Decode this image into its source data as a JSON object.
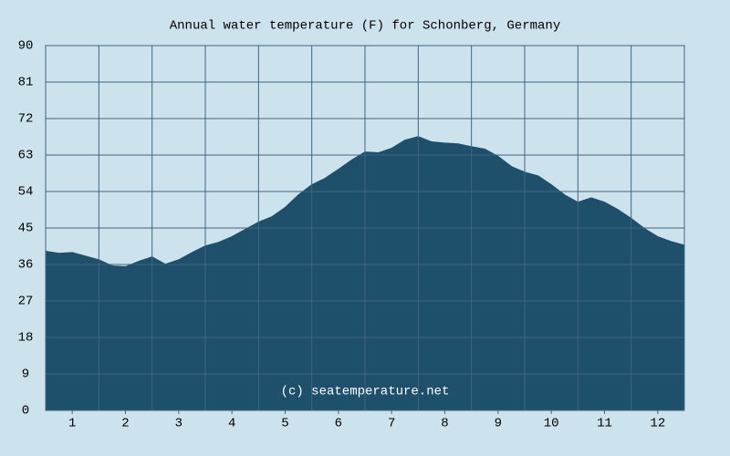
{
  "chart_data": {
    "type": "area",
    "title": "Annual water temperature (F) for Schonberg, Germany",
    "watermark": "(c) seatemperature.net",
    "color": "#1e4f6b",
    "grid": true,
    "x": [
      0.5,
      0.75,
      1,
      1.25,
      1.5,
      1.75,
      2,
      2.25,
      2.5,
      2.75,
      3,
      3.25,
      3.5,
      3.75,
      4,
      4.25,
      4.5,
      4.75,
      5,
      5.25,
      5.5,
      5.75,
      6,
      6.25,
      6.5,
      6.75,
      7,
      7.25,
      7.5,
      7.75,
      8,
      8.25,
      8.5,
      8.75,
      9,
      9.25,
      9.5,
      9.75,
      10,
      10.25,
      10.5,
      10.75,
      11,
      11.25,
      11.5,
      11.75,
      12,
      12.25,
      12.5
    ],
    "values": [
      39.2,
      38.7,
      38.9,
      38.0,
      37.1,
      35.6,
      35.4,
      36.7,
      37.8,
      36.0,
      37.1,
      38.9,
      40.5,
      41.4,
      42.8,
      44.6,
      46.4,
      47.7,
      50.0,
      53.1,
      55.6,
      57.2,
      59.4,
      61.7,
      63.7,
      63.5,
      64.6,
      66.6,
      67.5,
      66.2,
      65.9,
      65.7,
      65.0,
      64.4,
      62.6,
      60.1,
      58.7,
      57.8,
      55.6,
      53.1,
      51.3,
      52.4,
      51.3,
      49.5,
      47.3,
      44.8,
      42.8,
      41.6,
      40.7
    ],
    "xlim": [
      0.5,
      12.5
    ],
    "xticks": [
      1,
      2,
      3,
      4,
      5,
      6,
      7,
      8,
      9,
      10,
      11,
      12
    ],
    "xgrid": [
      1.5,
      2.5,
      3.5,
      4.5,
      5.5,
      6.5,
      7.5,
      8.5,
      9.5,
      10.5,
      11.5
    ],
    "ylim": [
      0,
      90
    ],
    "yticks": [
      0,
      9,
      18,
      27,
      36,
      45,
      54,
      63,
      72,
      81,
      90
    ]
  }
}
